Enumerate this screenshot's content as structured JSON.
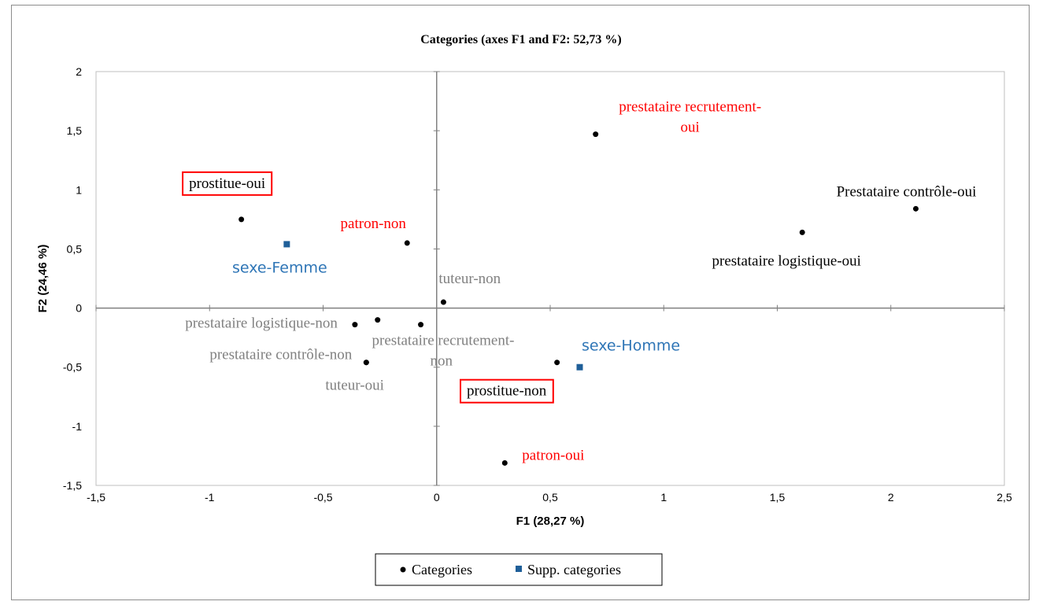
{
  "chart_data": {
    "type": "scatter",
    "title": "Categories (axes F1 and F2: 52,73 %)",
    "xlabel": "F1 (28,27 %)",
    "ylabel": "F2 (24,46 %)",
    "xlim": [
      -1.5,
      2.5
    ],
    "ylim": [
      -1.5,
      2
    ],
    "xticks": [
      "-1,5",
      "-1",
      "-0,5",
      "0",
      "0,5",
      "1",
      "1,5",
      "2",
      "2,5"
    ],
    "yticks": [
      "2",
      "1,5",
      "1",
      "0,5",
      "0",
      "-0,5",
      "-1",
      "-1,5"
    ],
    "grid": false,
    "legend_position": "bottom",
    "colors": {
      "black": "#000000",
      "red": "#ff0000",
      "gray": "#808080",
      "blue": "#2e75b6",
      "supp_marker": "#1f5f99"
    },
    "series": [
      {
        "name": "Categories",
        "marker": "circle",
        "points": [
          {
            "x": -0.86,
            "y": 0.75,
            "label": "prostitue-oui",
            "color": "black",
            "boxed": true
          },
          {
            "x": -0.13,
            "y": 0.55,
            "label": "patron-non",
            "color": "red"
          },
          {
            "x": 0.7,
            "y": 1.47,
            "label": "prestataire recrutement-\noui",
            "color": "red"
          },
          {
            "x": 2.11,
            "y": 0.84,
            "label": "Prestataire contrôle-oui",
            "color": "black"
          },
          {
            "x": 1.61,
            "y": 0.64,
            "label": "prestataire logistique-oui",
            "color": "black"
          },
          {
            "x": 0.03,
            "y": 0.05,
            "label": "tuteur-non",
            "color": "gray"
          },
          {
            "x": -0.36,
            "y": -0.14,
            "label": "prestataire logistique-non",
            "color": "gray"
          },
          {
            "x": -0.26,
            "y": -0.1,
            "label": "",
            "color": "gray"
          },
          {
            "x": -0.07,
            "y": -0.14,
            "label": "prestataire recrutement-\nnon",
            "color": "gray"
          },
          {
            "x": -0.31,
            "y": -0.46,
            "label": "prestataire contrôle-non",
            "color": "gray"
          },
          {
            "x": -0.31,
            "y": -0.46,
            "label": "tuteur-oui",
            "color": "gray"
          },
          {
            "x": 0.53,
            "y": -0.46,
            "label": "prostitue-non",
            "color": "black",
            "boxed": true
          },
          {
            "x": 0.3,
            "y": -1.31,
            "label": "patron-oui",
            "color": "red"
          }
        ]
      },
      {
        "name": "Supp. categories",
        "marker": "square",
        "points": [
          {
            "x": -0.66,
            "y": 0.54,
            "label": "sexe-Femme",
            "color": "blue"
          },
          {
            "x": 0.63,
            "y": -0.5,
            "label": "sexe-Homme",
            "color": "blue"
          }
        ]
      }
    ]
  }
}
